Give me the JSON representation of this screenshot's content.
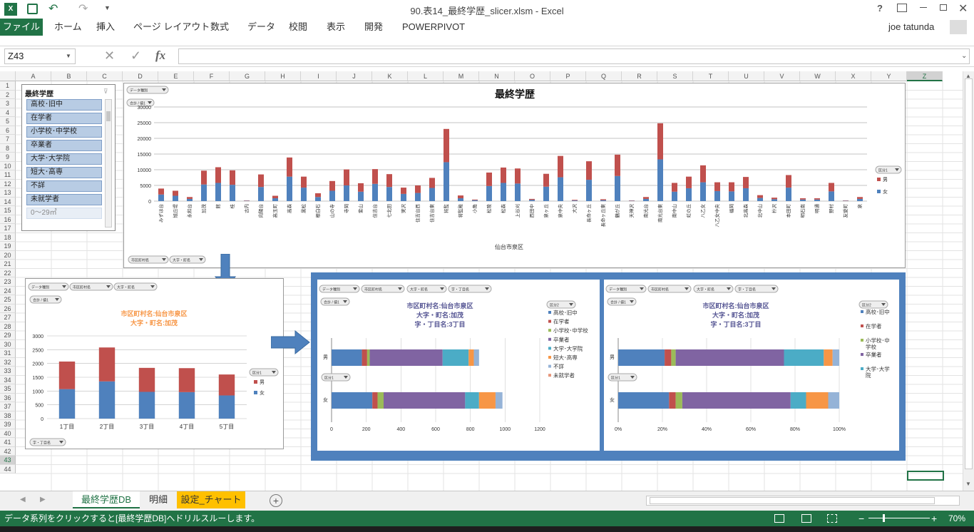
{
  "window": {
    "title": "90.表14_最終学歴_slicer.xlsm - Excel",
    "help": "?",
    "user": "joe tatunda"
  },
  "ribbon": {
    "file": "ファイル",
    "tabs": [
      "ホーム",
      "挿入",
      "ページ レイアウト",
      "数式",
      "データ",
      "校閲",
      "表示",
      "開発",
      "POWERPIVOT"
    ]
  },
  "formula_bar": {
    "name_box": "Z43",
    "fx": "fx",
    "content": ""
  },
  "columns": [
    "A",
    "B",
    "C",
    "D",
    "E",
    "F",
    "G",
    "H",
    "I",
    "J",
    "K",
    "L",
    "M",
    "N",
    "O",
    "P",
    "Q",
    "R",
    "S",
    "T",
    "U",
    "V",
    "W",
    "X",
    "Y",
    "Z"
  ],
  "rows": [
    "1",
    "2",
    "3",
    "4",
    "5",
    "6",
    "7",
    "8",
    "9",
    "10",
    "11",
    "12",
    "13",
    "14",
    "15",
    "16",
    "17",
    "18",
    "19",
    "20",
    "21",
    "22",
    "23",
    "24",
    "25",
    "26",
    "27",
    "28",
    "29",
    "30",
    "31",
    "32",
    "33",
    "34",
    "35",
    "36",
    "37",
    "38",
    "39",
    "40",
    "41",
    "42",
    "43",
    "44"
  ],
  "slicer": {
    "title": "最終学歴",
    "items": [
      "高校･旧中",
      "在学者",
      "小学校･中学校",
      "卒業者",
      "大学･大学院",
      "短大･高専",
      "不詳",
      "未就学者",
      "0～29㎡"
    ]
  },
  "field_buttons": {
    "data_filter": "データ種別",
    "sum": "合計 / 値1",
    "city": "市区町村名",
    "aza": "大字・町名",
    "chome": "字・丁目名",
    "kubun1": "区分1",
    "kubun2": "区分2"
  },
  "chart_data": [
    {
      "type": "bar",
      "title": "最終学歴",
      "xlabel": "仙台市泉区",
      "ylabel": "",
      "ylim": [
        0,
        30000
      ],
      "yticks": [
        "0",
        "5000",
        "10000",
        "15000",
        "20000",
        "25000",
        "30000"
      ],
      "legend": "right",
      "categories": [
        "みずほ台",
        "旭丘堤",
        "永和台",
        "加茂",
        "館",
        "桂",
        "古内",
        "向陽台",
        "高玉町",
        "高森",
        "黒松",
        "根白石",
        "山の寺",
        "寺岡",
        "紫山",
        "住吉台",
        "七北田",
        "実沢",
        "住吉台西",
        "住吉台東",
        "将監",
        "将監殿",
        "小角",
        "松陵",
        "松森",
        "上谷刈",
        "西田中",
        "泉ヶ丘",
        "泉中央",
        "大沢",
        "長命ヶ丘",
        "長命ヶ丘東",
        "鶴が丘",
        "天神沢",
        "南光台",
        "南光台東",
        "南中山",
        "虹の丘",
        "八乙女",
        "八乙女中央",
        "福岡",
        "北高森",
        "北中山",
        "朴沢",
        "本田町",
        "明石南",
        "明通",
        "野村",
        "友愛町",
        "泉"
      ],
      "series": [
        {
          "name": "女",
          "color": "#4f81bd",
          "values": [
            2100,
            1700,
            700,
            5300,
            5800,
            5200,
            100,
            4500,
            900,
            7800,
            4300,
            1300,
            3300,
            5000,
            3000,
            5500,
            4500,
            2300,
            2600,
            4200,
            12400,
            900,
            300,
            4800,
            5800,
            5600,
            400,
            4600,
            7600,
            200,
            6800,
            300,
            8000,
            100,
            700,
            13300,
            3000,
            4100,
            6000,
            3200,
            3100,
            4100,
            1000,
            600,
            4300,
            500,
            500,
            3100,
            100,
            700
          ],
          "note": "female segment"
        },
        {
          "name": "男",
          "color": "#c0504d",
          "values": [
            1900,
            1600,
            600,
            4400,
            5000,
            4600,
            100,
            4000,
            800,
            6100,
            3500,
            1200,
            3100,
            5100,
            2700,
            4700,
            4100,
            2000,
            2400,
            3200,
            10600,
            900,
            200,
            4300,
            4900,
            4800,
            300,
            4100,
            6800,
            200,
            5900,
            300,
            6800,
            100,
            600,
            11500,
            2800,
            3700,
            5400,
            2800,
            2900,
            3600,
            900,
            500,
            4000,
            400,
            400,
            2700,
            100,
            600
          ]
        }
      ]
    },
    {
      "type": "bar",
      "title": "市区町村名:仙台市泉区",
      "subtitle": "大字・町名:加茂",
      "ylim": [
        0,
        3000
      ],
      "yticks": [
        "0",
        "500",
        "1000",
        "1500",
        "2000",
        "2500",
        "3000"
      ],
      "legend": "right",
      "categories": [
        "1丁目",
        "2丁目",
        "3丁目",
        "4丁目",
        "5丁目"
      ],
      "series": [
        {
          "name": "女",
          "color": "#4f81bd",
          "values": [
            1070,
            1350,
            970,
            960,
            840
          ]
        },
        {
          "name": "男",
          "color": "#c0504d",
          "values": [
            1000,
            1230,
            870,
            870,
            760
          ]
        }
      ]
    },
    {
      "type": "bar",
      "orientation": "horizontal",
      "title": "市区町村名:仙台市泉区",
      "subtitle": "大字・町名:加茂",
      "subtitle2": "字・丁目名:3丁目",
      "xlim": [
        0,
        1200
      ],
      "xticks": [
        "0",
        "200",
        "400",
        "600",
        "800",
        "1000",
        "1200"
      ],
      "categories": [
        "男",
        "女"
      ],
      "series": [
        {
          "name": "高校･旧中",
          "color": "#4f81bd",
          "values": [
            175,
            235
          ]
        },
        {
          "name": "在学者",
          "color": "#c0504d",
          "values": [
            30,
            30
          ]
        },
        {
          "name": "小学校･中学校",
          "color": "#9bbb59",
          "values": [
            15,
            35
          ]
        },
        {
          "name": "卒業者",
          "color": "#8064a2",
          "values": [
            420,
            470
          ]
        },
        {
          "name": "大学･大学院",
          "color": "#4bacc6",
          "values": [
            150,
            80
          ]
        },
        {
          "name": "短大･高専",
          "color": "#f79646",
          "values": [
            30,
            95
          ]
        },
        {
          "name": "不詳",
          "color": "#95b3d7",
          "values": [
            30,
            40
          ]
        },
        {
          "name": "未就学者",
          "color": "#e6957a",
          "values": [
            0,
            0
          ]
        }
      ]
    },
    {
      "type": "bar",
      "orientation": "horizontal",
      "stacked_percent": true,
      "title": "市区町村名:仙台市泉区",
      "subtitle": "大字・町名:加茂",
      "subtitle2": "字・丁目名:3丁目",
      "xticks": [
        "0%",
        "20%",
        "40%",
        "60%",
        "80%",
        "100%"
      ],
      "categories": [
        "男",
        "女"
      ],
      "legend_items": [
        "高校･旧中",
        "在学者",
        "小学校･中学校",
        "卒業者",
        "大学･大学院"
      ],
      "series": [
        {
          "name": "高校･旧中",
          "color": "#4f81bd",
          "values": [
            21,
            23
          ]
        },
        {
          "name": "在学者",
          "color": "#c0504d",
          "values": [
            3,
            3
          ]
        },
        {
          "name": "小学校･中学校",
          "color": "#9bbb59",
          "values": [
            2,
            3
          ]
        },
        {
          "name": "卒業者",
          "color": "#8064a2",
          "values": [
            49,
            49
          ]
        },
        {
          "name": "大学･大学院",
          "color": "#4bacc6",
          "values": [
            18,
            7
          ]
        },
        {
          "name": "短大･高専",
          "color": "#f79646",
          "values": [
            4,
            10
          ]
        },
        {
          "name": "不詳",
          "color": "#95b3d7",
          "values": [
            3,
            5
          ]
        }
      ]
    }
  ],
  "sheets": [
    "最終学歴DB",
    "明細",
    "設定_チャート"
  ],
  "status": {
    "message": "データ系列をクリックすると[最終学歴DB]へドリルスルーします。",
    "zoom": "70%"
  }
}
